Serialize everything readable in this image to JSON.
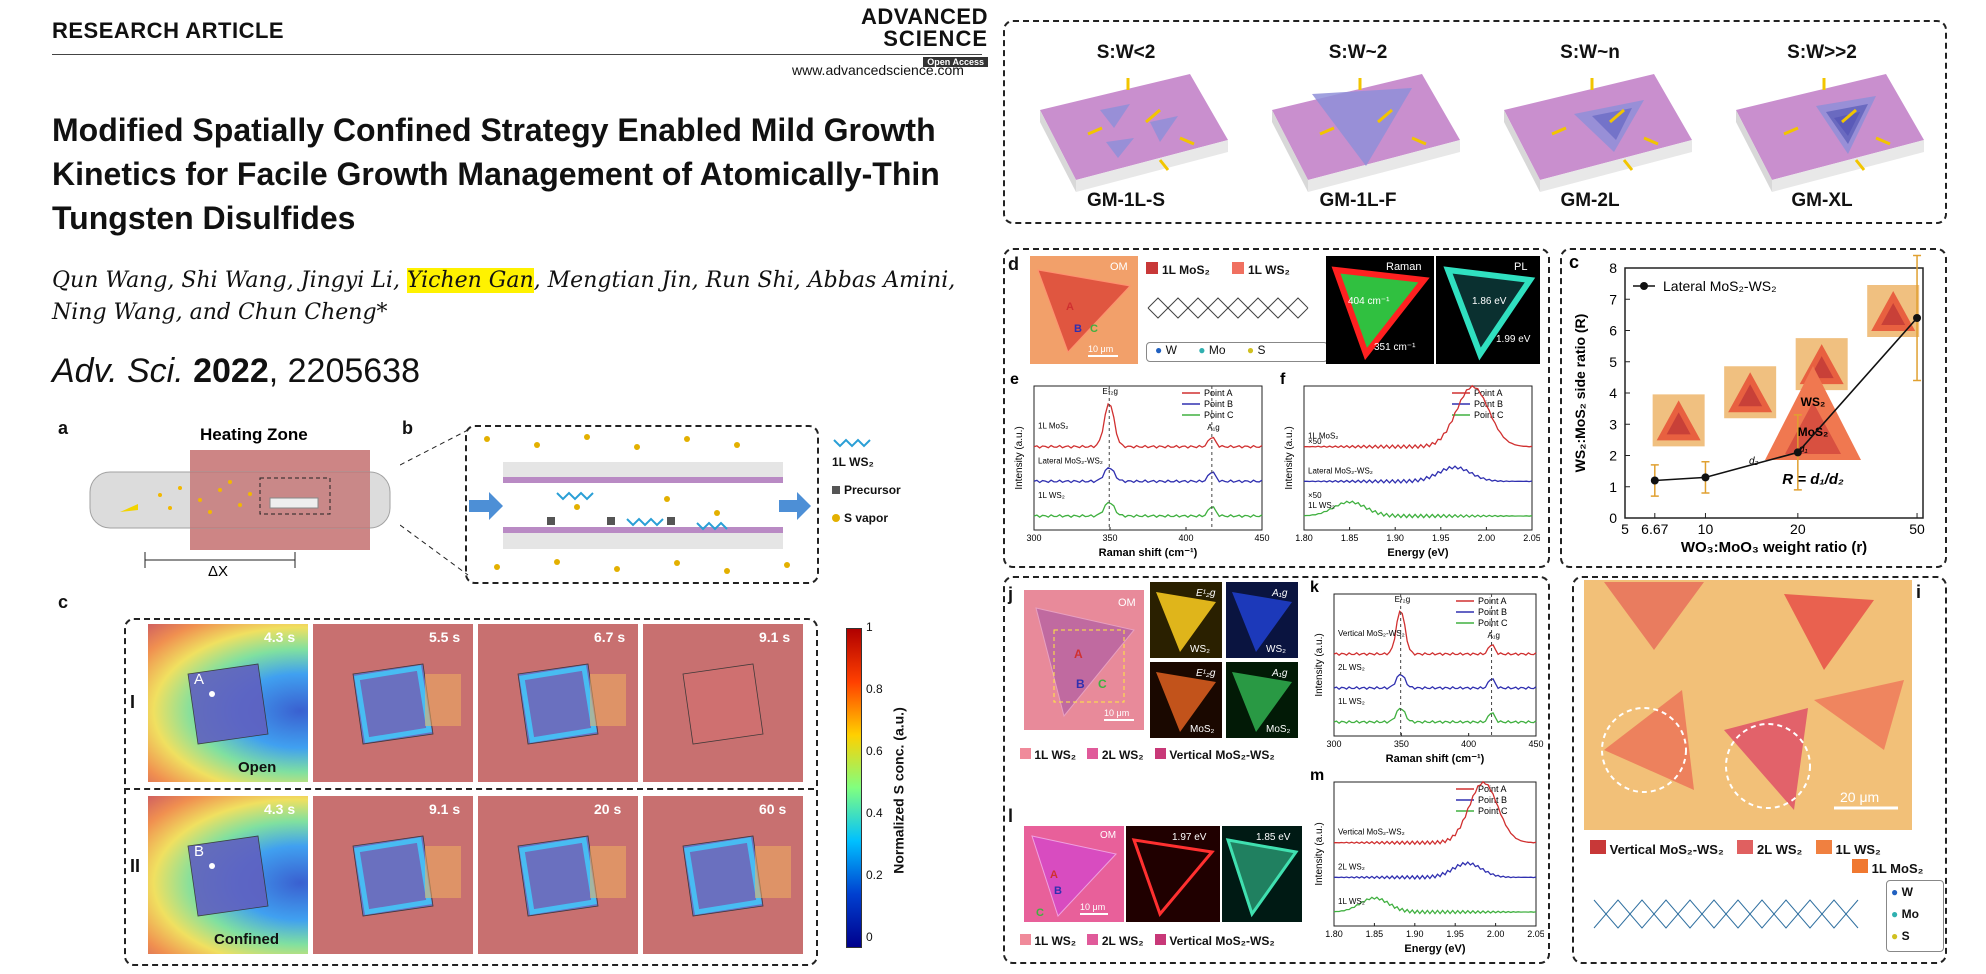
{
  "header": {
    "journal_tag": "RESEARCH ARTICLE",
    "logo_line1": "ADVANCED",
    "logo_line2": "SCIENCE",
    "logo_line3": "Open Access",
    "website": "www.advancedscience.com"
  },
  "article": {
    "title": "Modified Spatially Confined Strategy Enabled Mild Growth Kinetics for Facile Growth Management of Atomically-Thin Tungsten Disulfides",
    "authors_before": "Qun Wang, Shi Wang, Jingyi Li, ",
    "author_highlight": "Yichen Gan",
    "authors_after": ", Mengtian Jin, Run Shi, Abbas Amini, Ning Wang, and Chun Cheng*",
    "citation_journal": "Adv. Sci.",
    "citation_year": "2022",
    "citation_number": ", 2205638"
  },
  "fig_left": {
    "a_label": "a",
    "b_label": "b",
    "c_label": "c",
    "heating_zone": "Heating Zone",
    "delta_x": "ΔX",
    "legend_ws2": "1L WS₂",
    "legend_precursor": "Precursor",
    "legend_svapor": "S vapor",
    "row1_label": "I",
    "row2_label": "II",
    "row1_times": [
      "4.3 s",
      "5.5 s",
      "6.7 s",
      "9.1 s"
    ],
    "row2_times": [
      "4.3 s",
      "9.1 s",
      "20 s",
      "60 s"
    ],
    "open_label": "Open",
    "confined_label": "Confined",
    "point_a": "A",
    "point_b": "B",
    "colorbar_label": "Normalized S conc. (a.u.)",
    "colorbar_ticks": [
      "1",
      "0.8",
      "0.6",
      "0.4",
      "0.2",
      "0"
    ]
  },
  "fig_top": {
    "ratios": [
      "S:W<2",
      "S:W~2",
      "S:W~n",
      "S:W>>2"
    ],
    "names": [
      "GM-1L-S",
      "GM-1L-F",
      "GM-2L",
      "GM-XL"
    ]
  },
  "fig_d": {
    "d_label": "d",
    "om": "OM",
    "legend_mos2": "1L MoS₂",
    "legend_ws2": "1L WS₂",
    "raman_label": "Raman",
    "pl_label": "PL",
    "raman_404": "404 cm⁻¹",
    "raman_351": "351 cm⁻¹",
    "pl_186": "1.86 eV",
    "pl_199": "1.99 eV",
    "scale": "10 μm",
    "atoms": [
      "W",
      "Mo",
      "S"
    ],
    "points": [
      "A",
      "B",
      "C"
    ]
  },
  "fig_e": {
    "label": "e",
    "xlabel": "Raman shift (cm⁻¹)",
    "ylabel": "Intensity (a.u.)",
    "xticks": [
      "300",
      "350",
      "400",
      "450"
    ],
    "legend": [
      "Point A",
      "Point B",
      "Point C"
    ],
    "curve_labels": [
      "1L WS₂",
      "Lateral MoS₂-WS₂",
      "1L MoS₂"
    ],
    "peak_labels": [
      "E¹₂g",
      "A₁g",
      "E¹₂g",
      "A₁g"
    ]
  },
  "fig_f": {
    "label": "f",
    "xlabel": "Energy (eV)",
    "ylabel": "Intensity (a.u.)",
    "xticks": [
      "1.80",
      "1.85",
      "1.90",
      "1.95",
      "2.00",
      "2.05"
    ],
    "legend": [
      "Point A",
      "Point B",
      "Point C"
    ],
    "curve_labels": [
      "1L WS₂",
      "Lateral MoS₂-WS₂",
      "1L MoS₂"
    ],
    "multipliers": [
      "×50",
      "×50"
    ]
  },
  "chart_data": {
    "type": "line",
    "title": "",
    "xlabel": "WO₃:MoO₃ weight ratio (r)",
    "ylabel": "WS₂:MoS₂ side ratio (R)",
    "x_tick_labels": [
      "5",
      "6.67",
      "10",
      "20",
      "50"
    ],
    "y_tick_labels": [
      "0",
      "1",
      "2",
      "3",
      "4",
      "5",
      "6",
      "7",
      "8"
    ],
    "ylim": [
      0,
      8
    ],
    "series": [
      {
        "name": "Lateral MoS₂-WS₂",
        "x": [
          6.67,
          10,
          20,
          50
        ],
        "y": [
          1.2,
          1.3,
          2.1,
          6.4
        ],
        "err": [
          0.5,
          0.5,
          1.2,
          2.0
        ]
      }
    ],
    "panel_label": "c",
    "annotations": [
      "WS₂",
      "MoS₂",
      "d₁",
      "d₂",
      "R = d₁/d₂"
    ]
  },
  "fig_j": {
    "j_label": "j",
    "om": "OM",
    "map_labels": [
      "E¹₂g",
      "A₁g",
      "E¹₂g",
      "A₁g"
    ],
    "map_mats": [
      "WS₂",
      "WS₂",
      "MoS₂",
      "MoS₂"
    ],
    "legend": [
      "1L WS₂",
      "2L WS₂",
      "Vertical MoS₂-WS₂"
    ],
    "scale": "10 μm",
    "points": [
      "A",
      "B",
      "C"
    ]
  },
  "fig_k": {
    "label": "k",
    "xlabel": "Raman shift (cm⁻¹)",
    "ylabel": "Intensity (a.u.)",
    "xticks": [
      "300",
      "350",
      "400",
      "450"
    ],
    "legend": [
      "Point A",
      "Point B",
      "Point C"
    ],
    "curve_labels": [
      "1L WS₂",
      "2L WS₂",
      "Vertical MoS₂-WS₂"
    ],
    "peak_labels": [
      "E¹₂g",
      "A₁g",
      "E¹₂g",
      "A₁g"
    ]
  },
  "fig_l": {
    "label": "l",
    "om": "OM",
    "ev1": "1.97 eV",
    "ev2": "1.85 eV",
    "legend": [
      "1L WS₂",
      "2L WS₂",
      "Vertical MoS₂-WS₂"
    ],
    "scale": "10 μm",
    "points": [
      "A",
      "B",
      "C"
    ]
  },
  "fig_m": {
    "label": "m",
    "xlabel": "Energy (eV)",
    "ylabel": "Intensity (a.u.)",
    "xticks": [
      "1.80",
      "1.85",
      "1.90",
      "1.95",
      "2.00",
      "2.05"
    ],
    "legend": [
      "Point A",
      "Point B",
      "Point C"
    ],
    "curve_labels": [
      "1L WS₂",
      "2L WS₂",
      "Vertical MoS₂-WS₂"
    ]
  },
  "fig_i": {
    "label": "i",
    "scale": "20 μm",
    "legend": [
      "Vertical MoS₂-WS₂",
      "2L WS₂",
      "1L WS₂",
      "1L MoS₂"
    ],
    "atoms": [
      "W",
      "Mo",
      "S"
    ]
  },
  "colors": {
    "substrate_top": "#c98fce",
    "triangle": "#8f8fd8",
    "arrow": "#f2c500",
    "heating": "#c47070",
    "ws2_orange": "#f07a2a",
    "pointA": "#d03030",
    "pointB": "#3030b0",
    "pointC": "#40b040"
  }
}
